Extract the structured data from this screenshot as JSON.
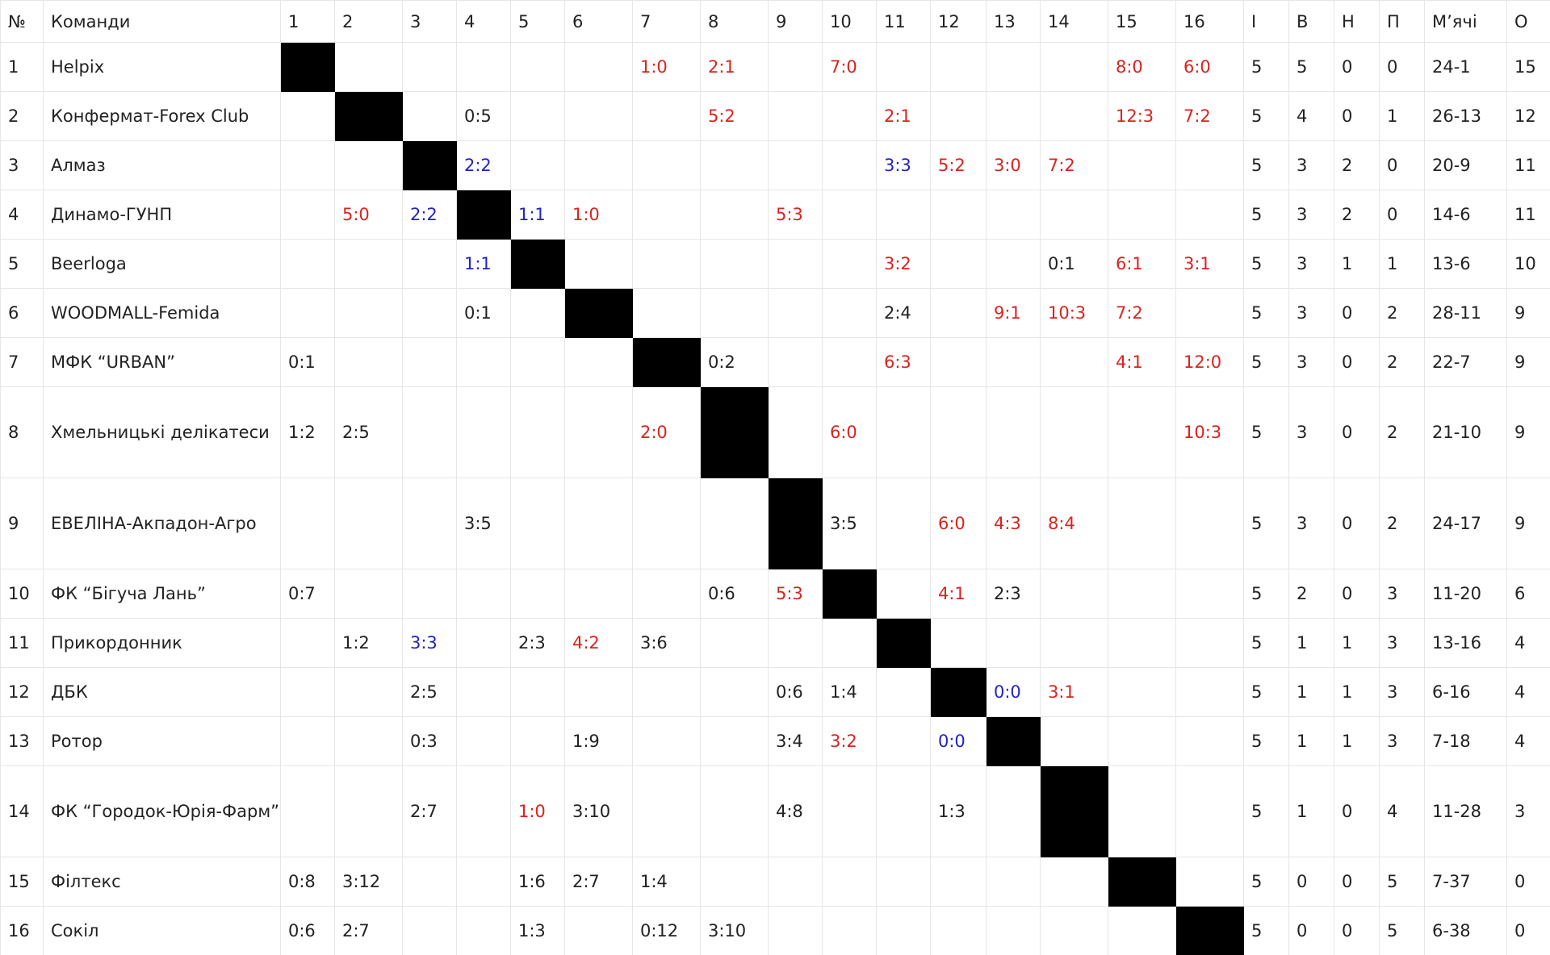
{
  "header": [
    "№",
    "Команди",
    "1",
    "2",
    "3",
    "4",
    "5",
    "6",
    "7",
    "8",
    "9",
    "10",
    "11",
    "12",
    "13",
    "14",
    "15",
    "16",
    "І",
    "В",
    "Н",
    "П",
    "М’ячі",
    "О"
  ],
  "win_color": "#d9231e",
  "draw_color": "#2323c4",
  "loss_color": "#222222",
  "blocked_color": "#000000",
  "rows": [
    {
      "number": 1,
      "team": "Helpix",
      "results": [
        null,
        null,
        null,
        null,
        null,
        null,
        "1:0",
        "2:1",
        null,
        "7:0",
        null,
        null,
        null,
        null,
        "8:0",
        "6:0"
      ],
      "games": 5,
      "wins": 5,
      "draws": 0,
      "losses": 0,
      "goals": "24-1",
      "points": 15
    },
    {
      "number": 2,
      "team": "Конфермат-Forex Club",
      "results": [
        null,
        null,
        null,
        "0:5",
        null,
        null,
        null,
        "5:2",
        null,
        null,
        "2:1",
        null,
        null,
        null,
        "12:3",
        "7:2"
      ],
      "games": 5,
      "wins": 4,
      "draws": 0,
      "losses": 1,
      "goals": "26-13",
      "points": 12
    },
    {
      "number": 3,
      "team": "Алмаз",
      "results": [
        null,
        null,
        null,
        "2:2",
        null,
        null,
        null,
        null,
        null,
        null,
        "3:3",
        "5:2",
        "3:0",
        "7:2",
        null,
        null
      ],
      "games": 5,
      "wins": 3,
      "draws": 2,
      "losses": 0,
      "goals": "20-9",
      "points": 11
    },
    {
      "number": 4,
      "team": "Динамо-ГУНП",
      "results": [
        null,
        "5:0",
        "2:2",
        null,
        "1:1",
        "1:0",
        null,
        null,
        "5:3",
        null,
        null,
        null,
        null,
        null,
        null,
        null
      ],
      "games": 5,
      "wins": 3,
      "draws": 2,
      "losses": 0,
      "goals": "14-6",
      "points": 11
    },
    {
      "number": 5,
      "team": "Beerloga",
      "results": [
        null,
        null,
        null,
        "1:1",
        null,
        null,
        null,
        null,
        null,
        null,
        "3:2",
        null,
        null,
        "0:1",
        "6:1",
        "3:1"
      ],
      "games": 5,
      "wins": 3,
      "draws": 1,
      "losses": 1,
      "goals": "13-6",
      "points": 10
    },
    {
      "number": 6,
      "team": "WOODMALL-Femida",
      "results": [
        null,
        null,
        null,
        "0:1",
        null,
        null,
        null,
        null,
        null,
        null,
        "2:4",
        null,
        "9:1",
        "10:3",
        "7:2",
        null
      ],
      "games": 5,
      "wins": 3,
      "draws": 0,
      "losses": 2,
      "goals": "28-11",
      "points": 9
    },
    {
      "number": 7,
      "team": "МФК “URBAN”",
      "results": [
        "0:1",
        null,
        null,
        null,
        null,
        null,
        null,
        "0:2",
        null,
        null,
        "6:3",
        null,
        null,
        null,
        "4:1",
        "12:0"
      ],
      "games": 5,
      "wins": 3,
      "draws": 0,
      "losses": 2,
      "goals": "22-7",
      "points": 9
    },
    {
      "number": 8,
      "team": "Хмельницькі делікатеси",
      "results": [
        "1:2",
        "2:5",
        null,
        null,
        null,
        null,
        "2:0",
        null,
        null,
        "6:0",
        null,
        null,
        null,
        null,
        null,
        "10:3"
      ],
      "games": 5,
      "wins": 3,
      "draws": 0,
      "losses": 2,
      "goals": "21-10",
      "points": 9
    },
    {
      "number": 9,
      "team": "ЕВЕЛІНА-Акпадон-Агро",
      "results": [
        null,
        null,
        null,
        "3:5",
        null,
        null,
        null,
        null,
        null,
        "3:5",
        null,
        "6:0",
        "4:3",
        "8:4",
        null,
        null
      ],
      "games": 5,
      "wins": 3,
      "draws": 0,
      "losses": 2,
      "goals": "24-17",
      "points": 9
    },
    {
      "number": 10,
      "team": "ФК “Бігуча Лань”",
      "results": [
        "0:7",
        null,
        null,
        null,
        null,
        null,
        null,
        "0:6",
        "5:3",
        null,
        null,
        "4:1",
        "2:3",
        null,
        null,
        null
      ],
      "games": 5,
      "wins": 2,
      "draws": 0,
      "losses": 3,
      "goals": "11-20",
      "points": 6
    },
    {
      "number": 11,
      "team": "Прикордонник",
      "results": [
        null,
        "1:2",
        "3:3",
        null,
        "2:3",
        "4:2",
        "3:6",
        null,
        null,
        null,
        null,
        null,
        null,
        null,
        null,
        null
      ],
      "games": 5,
      "wins": 1,
      "draws": 1,
      "losses": 3,
      "goals": "13-16",
      "points": 4
    },
    {
      "number": 12,
      "team": "ДБК",
      "results": [
        null,
        null,
        "2:5",
        null,
        null,
        null,
        null,
        null,
        "0:6",
        "1:4",
        null,
        null,
        "0:0",
        "3:1",
        null,
        null
      ],
      "games": 5,
      "wins": 1,
      "draws": 1,
      "losses": 3,
      "goals": "6-16",
      "points": 4
    },
    {
      "number": 13,
      "team": "Ротор",
      "results": [
        null,
        null,
        "0:3",
        null,
        null,
        "1:9",
        null,
        null,
        "3:4",
        "3:2",
        null,
        "0:0",
        null,
        null,
        null,
        null
      ],
      "games": 5,
      "wins": 1,
      "draws": 1,
      "losses": 3,
      "goals": "7-18",
      "points": 4
    },
    {
      "number": 14,
      "team": "ФК “Городок-Юрія-Фарм”",
      "results": [
        null,
        null,
        "2:7",
        null,
        "1:0",
        "3:10",
        null,
        null,
        "4:8",
        null,
        null,
        "1:3",
        null,
        null,
        null,
        null
      ],
      "games": 5,
      "wins": 1,
      "draws": 0,
      "losses": 4,
      "goals": "11-28",
      "points": 3
    },
    {
      "number": 15,
      "team": "Філтекс",
      "results": [
        "0:8",
        "3:12",
        null,
        null,
        "1:6",
        "2:7",
        "1:4",
        null,
        null,
        null,
        null,
        null,
        null,
        null,
        null,
        null
      ],
      "games": 5,
      "wins": 0,
      "draws": 0,
      "losses": 5,
      "goals": "7-37",
      "points": 0
    },
    {
      "number": 16,
      "team": "Сокіл",
      "results": [
        "0:6",
        "2:7",
        null,
        null,
        "1:3",
        null,
        "0:12",
        "3:10",
        null,
        null,
        null,
        null,
        null,
        null,
        null,
        null
      ],
      "games": 5,
      "wins": 0,
      "draws": 0,
      "losses": 5,
      "goals": "6-38",
      "points": 0
    }
  ]
}
